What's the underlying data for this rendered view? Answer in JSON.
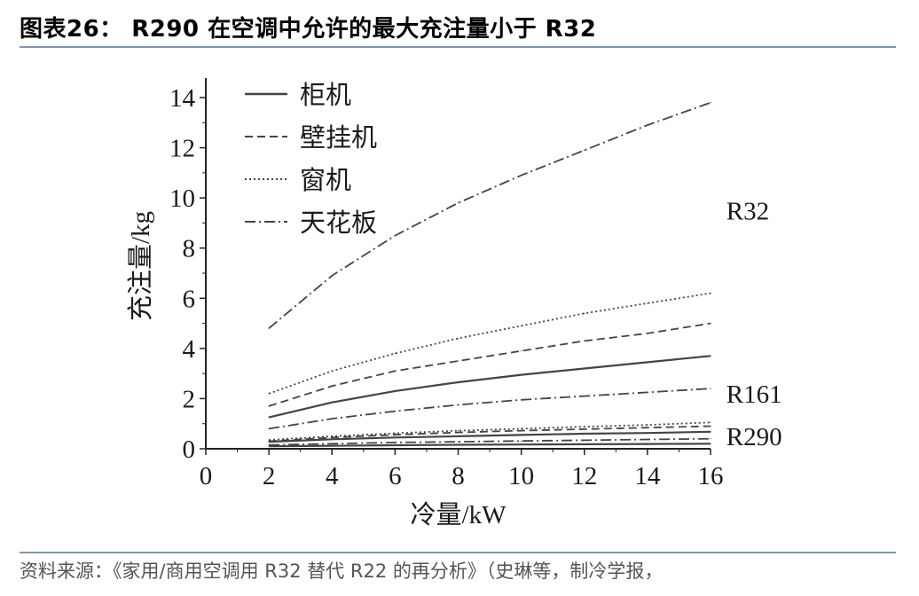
{
  "header": {
    "title": "图表26： R290 在空调中允许的最大充注量小于 R32"
  },
  "footer": {
    "source": "资料来源：《家用/商用空调用 R32 替代 R22 的再分析》（史琳等，制冷学报，"
  },
  "chart_data": {
    "type": "line",
    "xlabel": "冷量/kW",
    "ylabel": "充注量/kg",
    "xlim": [
      0,
      16
    ],
    "ylim": [
      0,
      14
    ],
    "xticks": [
      0,
      2,
      4,
      6,
      8,
      10,
      12,
      14,
      16
    ],
    "yticks": [
      0,
      2,
      4,
      6,
      8,
      10,
      12,
      14
    ],
    "grid": false,
    "legend_position": "top-left",
    "legend": [
      {
        "label": "柜机",
        "style": "solid"
      },
      {
        "label": "壁挂机",
        "style": "dashed"
      },
      {
        "label": "窗机",
        "style": "dotted"
      },
      {
        "label": "天花板",
        "style": "dashdot"
      }
    ],
    "group_labels": [
      {
        "text": "R32",
        "x": 16.5,
        "y": 9.5
      },
      {
        "text": "R161",
        "x": 16.5,
        "y": 2.2
      },
      {
        "text": "R290",
        "x": 16.5,
        "y": 0.5
      }
    ],
    "x": [
      2,
      4,
      6,
      8,
      10,
      12,
      14,
      16
    ],
    "series": [
      {
        "refrigerant": "R32",
        "unit": "天花板",
        "style": "dashdot",
        "values": [
          4.8,
          6.9,
          8.5,
          9.8,
          10.9,
          11.9,
          12.9,
          13.8
        ]
      },
      {
        "refrigerant": "R32",
        "unit": "窗机",
        "style": "dotted",
        "values": [
          2.2,
          3.1,
          3.8,
          4.4,
          4.9,
          5.4,
          5.8,
          6.2
        ]
      },
      {
        "refrigerant": "R32",
        "unit": "壁挂机",
        "style": "dashed",
        "values": [
          1.7,
          2.5,
          3.1,
          3.5,
          3.9,
          4.3,
          4.6,
          5.0
        ]
      },
      {
        "refrigerant": "R32",
        "unit": "柜机",
        "style": "solid",
        "values": [
          1.25,
          1.85,
          2.3,
          2.65,
          2.95,
          3.2,
          3.45,
          3.7
        ]
      },
      {
        "refrigerant": "R161",
        "unit": "天花板",
        "style": "dashdot",
        "values": [
          0.8,
          1.2,
          1.5,
          1.75,
          1.95,
          2.1,
          2.25,
          2.4
        ]
      },
      {
        "refrigerant": "R290",
        "unit": "窗机",
        "style": "dotted",
        "values": [
          0.35,
          0.5,
          0.62,
          0.72,
          0.8,
          0.88,
          0.95,
          1.05
        ]
      },
      {
        "refrigerant": "R290",
        "unit": "壁挂机",
        "style": "dashed",
        "values": [
          0.3,
          0.45,
          0.56,
          0.65,
          0.72,
          0.78,
          0.84,
          0.9
        ]
      },
      {
        "refrigerant": "R290",
        "unit": "柜机",
        "style": "solid",
        "values": [
          0.28,
          0.38,
          0.45,
          0.5,
          0.55,
          0.6,
          0.63,
          0.68
        ]
      },
      {
        "refrigerant": "R290",
        "unit": "天花板",
        "style": "dashdot",
        "values": [
          0.15,
          0.2,
          0.25,
          0.28,
          0.31,
          0.34,
          0.37,
          0.4
        ]
      },
      {
        "refrigerant": "R161",
        "unit": "柜机",
        "style": "solid",
        "values": [
          0.1,
          0.12,
          0.14,
          0.16,
          0.17,
          0.18,
          0.19,
          0.2
        ]
      }
    ],
    "colors": {
      "lines": "#444444",
      "axis": "#222222",
      "text": "#1a1a1a"
    }
  }
}
